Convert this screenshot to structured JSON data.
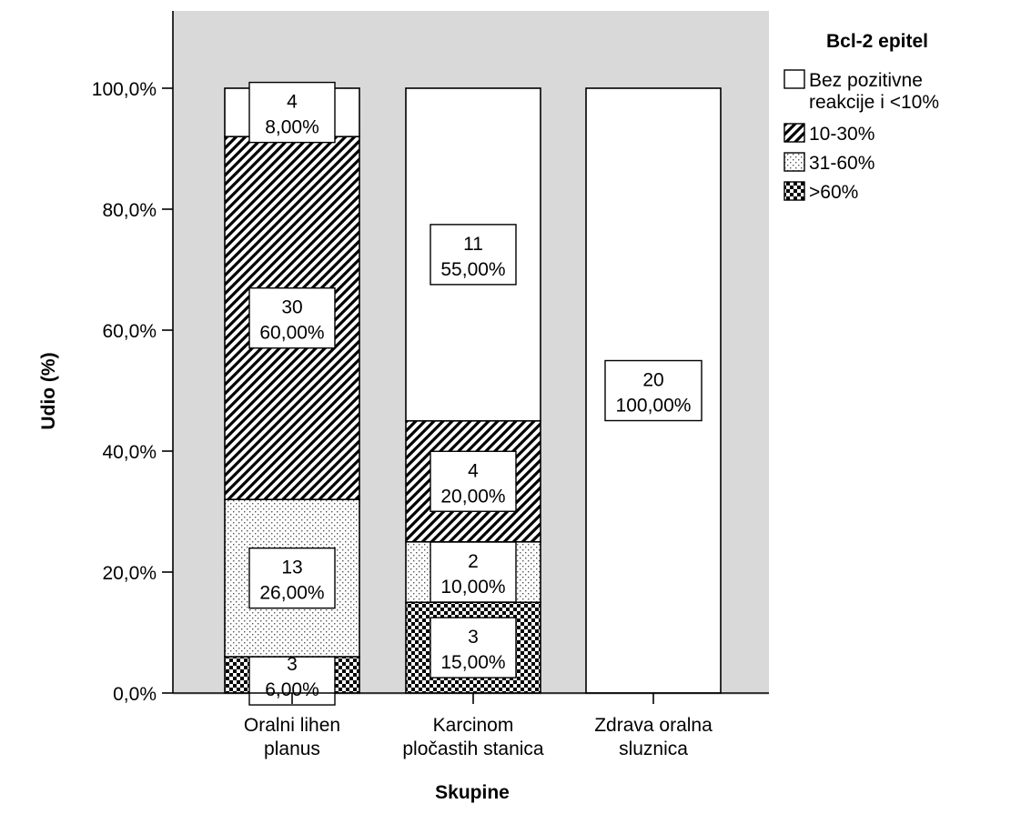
{
  "chart_data": {
    "type": "bar",
    "stacked": true,
    "percent_stacked": true,
    "xlabel": "Skupine",
    "ylabel": "Udio (%)",
    "ylim": [
      0,
      100
    ],
    "yticks": [
      "0,0%",
      "20,0%",
      "40,0%",
      "60,0%",
      "80,0%",
      "100,0%"
    ],
    "ytick_values": [
      0,
      20,
      40,
      60,
      80,
      100
    ],
    "grid": false,
    "categories": [
      [
        "Oralni lihen",
        "planus"
      ],
      [
        "Karcinom",
        "pločastih stanica"
      ],
      [
        "Zdrava oralna",
        "sluznica"
      ]
    ],
    "legend": {
      "title": "Bcl-2 epitel",
      "position": "right"
    },
    "series": [
      {
        "name": ">60%",
        "legend_lines": [
          ">60%"
        ],
        "pattern": "checker",
        "counts": [
          3,
          3,
          null
        ],
        "percents": [
          6,
          15,
          0
        ],
        "labels": [
          "6,00%",
          "15,00%",
          null
        ]
      },
      {
        "name": "31-60%",
        "legend_lines": [
          "31-60%"
        ],
        "pattern": "dots",
        "counts": [
          13,
          2,
          null
        ],
        "percents": [
          26,
          10,
          0
        ],
        "labels": [
          "26,00%",
          "10,00%",
          null
        ]
      },
      {
        "name": "10-30%",
        "legend_lines": [
          "10-30%"
        ],
        "pattern": "hatch",
        "counts": [
          30,
          4,
          null
        ],
        "percents": [
          60,
          20,
          0
        ],
        "labels": [
          "60,00%",
          "20,00%",
          null
        ]
      },
      {
        "name": "Bez pozitivne reakcije i <10%",
        "legend_lines": [
          "Bez pozitivne",
          "reakcije i <10%"
        ],
        "pattern": "none",
        "counts": [
          4,
          11,
          20
        ],
        "percents": [
          8,
          55,
          100
        ],
        "labels": [
          "8,00%",
          "55,00%",
          "100,00%"
        ]
      }
    ],
    "legend_order": [
      "Bez pozitivne reakcije i <10%",
      "10-30%",
      "31-60%",
      ">60%"
    ],
    "colors": {
      "background": "#ffffff",
      "plot_area": "#d9d9d9",
      "bar_fill": "#ffffff",
      "ink": "#000000"
    }
  }
}
